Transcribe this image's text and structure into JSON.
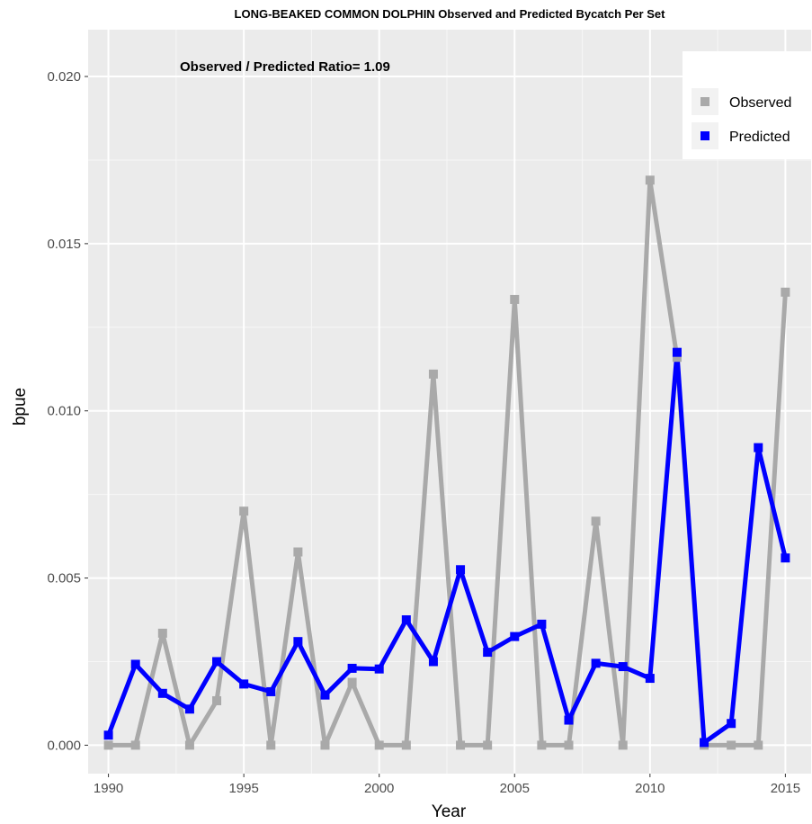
{
  "chart_data": {
    "type": "line",
    "title": "LONG-BEAKED COMMON DOLPHIN Observed and Predicted Bycatch Per Set",
    "annotation": "Observed / Predicted Ratio= 1.09",
    "xlabel": "Year",
    "ylabel": "bpue",
    "x": [
      1990,
      1991,
      1992,
      1993,
      1994,
      1995,
      1996,
      1997,
      1998,
      1999,
      2000,
      2001,
      2002,
      2003,
      2004,
      2005,
      2006,
      2007,
      2008,
      2009,
      2010,
      2011,
      2012,
      2013,
      2014,
      2015
    ],
    "x_ticks": [
      1990,
      1995,
      2000,
      2005,
      2010,
      2015
    ],
    "x_tick_labels": [
      "1990",
      "1995",
      "2000",
      "2005",
      "2010",
      "2015"
    ],
    "xlim": [
      1989.25,
      2015.95
    ],
    "y_ticks": [
      0,
      0.005,
      0.01,
      0.015,
      0.02
    ],
    "y_tick_labels": [
      "0.000",
      "0.005",
      "0.010",
      "0.015",
      "0.020"
    ],
    "ylim": [
      -0.00085,
      0.0214
    ],
    "grid": true,
    "legend_position": "top-right",
    "series": [
      {
        "name": "Observed",
        "color": "#a9a9a9",
        "values": [
          0,
          0,
          0.00335,
          0,
          0.00133,
          0.007,
          0,
          0.00578,
          0,
          0.00188,
          0,
          0,
          0.0111,
          0,
          0,
          0.01333,
          0,
          0,
          0.0067,
          0,
          0.0169,
          0.0116,
          0,
          0,
          0,
          0.01355
        ]
      },
      {
        "name": "Predicted",
        "color": "#0000ff",
        "values": [
          0.0003,
          0.00242,
          0.00155,
          0.00108,
          0.0025,
          0.00183,
          0.0016,
          0.0031,
          0.0015,
          0.0023,
          0.00228,
          0.00375,
          0.0025,
          0.00525,
          0.00278,
          0.00325,
          0.00362,
          0.00075,
          0.00245,
          0.00235,
          0.002,
          0.01175,
          8e-05,
          0.00065,
          0.0089,
          0.0056
        ]
      }
    ]
  }
}
